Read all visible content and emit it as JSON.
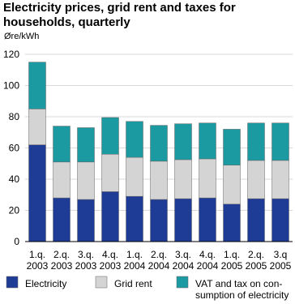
{
  "chart_data": {
    "type": "stacked_bar",
    "title": "Electricity prices, grid rent and taxes for households, quarterly",
    "y_label": "Øre/kWh",
    "categories": [
      "1.q.\n2003",
      "2.q.\n2003",
      "3.q.\n2003",
      "4.q.\n2003",
      "1.q.\n2004",
      "2.q.\n2004",
      "3.q.\n2004",
      "4.q.\n2004",
      "1.q.\n2005",
      "2.q.\n2005",
      "3.q\n2005"
    ],
    "series": [
      {
        "name": "Electricity",
        "color": "#1e3b96",
        "values": [
          62,
          28,
          27,
          32,
          29,
          27,
          27.5,
          28,
          24,
          27.5,
          27.5
        ]
      },
      {
        "name": "Grid rent",
        "color": "#d4d4d4",
        "values": [
          23,
          23,
          24,
          24,
          25,
          24.5,
          25,
          25,
          25,
          24.5,
          24.5
        ]
      },
      {
        "name": "VAT and tax on con-\nsumption of electricity",
        "color": "#1b9aa1",
        "values": [
          30,
          23,
          22,
          23.5,
          23,
          23,
          23,
          23,
          23,
          24,
          24
        ]
      }
    ],
    "ylim": [
      0,
      120
    ],
    "yticks": [
      0,
      20,
      40,
      60,
      80,
      100,
      120
    ],
    "grid": true
  }
}
